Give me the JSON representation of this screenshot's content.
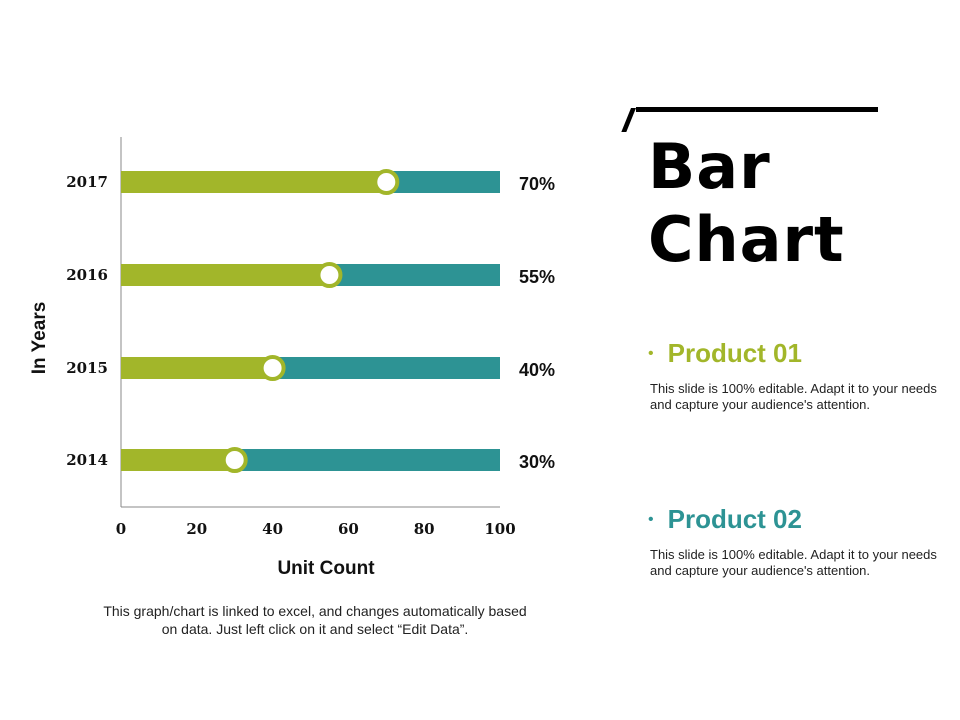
{
  "colors": {
    "product1": "#a2b62a",
    "product2": "#2d9394",
    "axis": "#888888",
    "text": "#111111"
  },
  "chart_data": {
    "type": "bar",
    "orientation": "horizontal",
    "categories": [
      "2017",
      "2016",
      "2015",
      "2014"
    ],
    "values": [
      70,
      55,
      40,
      30
    ],
    "value_labels": [
      "70%",
      "55%",
      "40%",
      "30%"
    ],
    "xlabel": "Unit Count",
    "ylabel": "In Years",
    "xlim": [
      0,
      100
    ],
    "x_ticks": [
      "0",
      "20",
      "40",
      "60",
      "80",
      "100"
    ],
    "grid": false,
    "legend": "none"
  },
  "chart_note": "This graph/chart is linked to excel, and changes automatically based on data. Just left click on it and select “Edit Data”.",
  "slide_title_line1": "Bar",
  "slide_title_line2": "Chart",
  "products": [
    {
      "bullet": "•",
      "name": "Product 01",
      "description": "This slide is 100% editable. Adapt it to your needs and capture your audience's attention."
    },
    {
      "bullet": "•",
      "name": "Product 02",
      "description": "This slide is 100% editable. Adapt it to your needs and capture your audience's attention."
    }
  ]
}
